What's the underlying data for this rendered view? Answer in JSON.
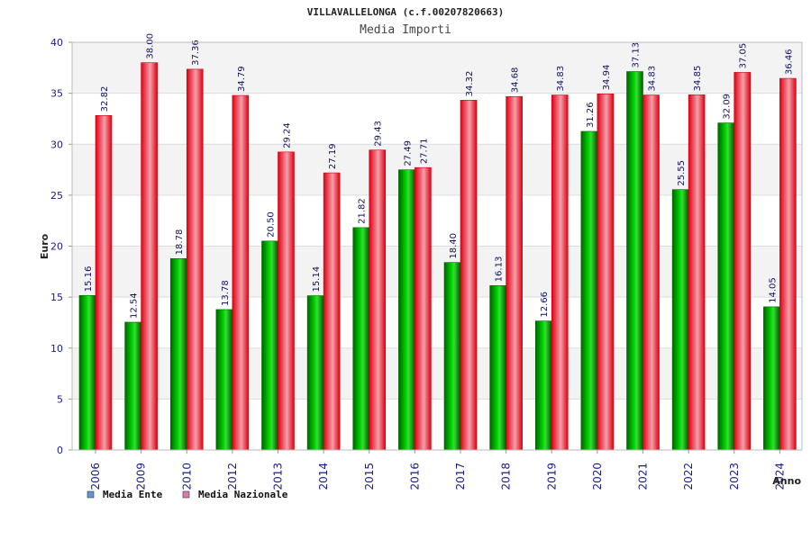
{
  "chart_data": {
    "type": "bar",
    "title": "VILLAVALLELONGA (c.f.00207820663)",
    "subtitle": "Media Importi",
    "xlabel": "Anno",
    "ylabel": "Euro",
    "ylim": [
      0,
      40
    ],
    "yticks": [
      0,
      5,
      10,
      15,
      20,
      25,
      30,
      35,
      40
    ],
    "categories": [
      "2006",
      "2009",
      "2010",
      "2012",
      "2013",
      "2014",
      "2015",
      "2016",
      "2017",
      "2018",
      "2019",
      "2020",
      "2021",
      "2022",
      "2023",
      "2024"
    ],
    "series": [
      {
        "name": "Media Ente",
        "color": "#00b000",
        "values": [
          15.16,
          12.54,
          18.78,
          13.78,
          20.5,
          15.14,
          21.82,
          27.49,
          18.4,
          16.13,
          12.66,
          31.26,
          37.13,
          25.55,
          32.09,
          14.05
        ],
        "labels": [
          "15.16",
          "12.54",
          "18.78",
          "13.78",
          "20.50",
          "15.14",
          "21.82",
          "27.49",
          "18.40",
          "16.13",
          "12.66",
          "31.26",
          "37.13",
          "25.55",
          "32.09",
          "14.05"
        ]
      },
      {
        "name": "Media Nazionale",
        "color": "#e8202a",
        "values": [
          32.82,
          38.0,
          37.36,
          34.79,
          29.24,
          27.19,
          29.43,
          27.71,
          34.32,
          34.68,
          34.83,
          34.94,
          34.83,
          34.85,
          37.05,
          36.46
        ],
        "labels": [
          "32.82",
          "38.00",
          "37.36",
          "34.79",
          "29.24",
          "27.19",
          "29.43",
          "27.71",
          "34.32",
          "34.68",
          "34.83",
          "34.94",
          "34.83",
          "34.85",
          "37.05",
          "36.46"
        ]
      }
    ],
    "legend": {
      "position": "bottom-left",
      "entries": [
        {
          "label": "Media Ente",
          "color": "#5b9bd5"
        },
        {
          "label": "Media Nazionale",
          "color": "#d97bb0"
        }
      ]
    },
    "grid": true
  }
}
